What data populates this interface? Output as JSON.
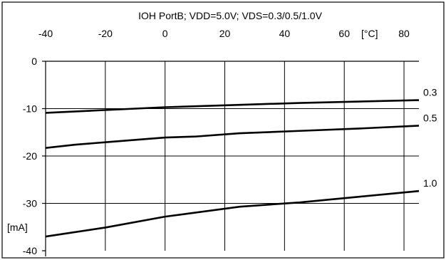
{
  "chart_data": {
    "type": "line",
    "title": "IOH PortB; VDD=5.0V; VDS=0.3/0.5/1.0V",
    "x_unit_label": "[°C]",
    "y_unit_label": "[mA]",
    "xlim": [
      -40,
      85
    ],
    "ylim": [
      -40,
      0
    ],
    "x_ticks": [
      -40,
      -20,
      0,
      20,
      40,
      60,
      80
    ],
    "x_tick_labels": [
      "-40",
      "-20",
      "0",
      "20",
      "40",
      "60",
      "80"
    ],
    "y_ticks": [
      0,
      -10,
      -20,
      -30,
      -40
    ],
    "y_tick_labels": [
      "0",
      "-10",
      "-20",
      "-30",
      "-40"
    ],
    "x_axis_position": "top",
    "grid": true,
    "legend": "line-end labels (right)",
    "series": [
      {
        "name": "0.3",
        "x": [
          -40,
          -20,
          0,
          25,
          45,
          65,
          85
        ],
        "y": [
          -10.9,
          -10.3,
          -9.7,
          -9.2,
          -8.8,
          -8.5,
          -8.2
        ]
      },
      {
        "name": "0.5",
        "x": [
          -40,
          -30,
          -20,
          0,
          10,
          25,
          45,
          65,
          85
        ],
        "y": [
          -18.3,
          -17.6,
          -17.1,
          -16.1,
          -15.9,
          -15.2,
          -14.7,
          -14.2,
          -13.6
        ]
      },
      {
        "name": "1.0",
        "x": [
          -40,
          -20,
          0,
          25,
          45,
          65,
          85
        ],
        "y": [
          -37.0,
          -35.1,
          -32.8,
          -30.7,
          -29.8,
          -28.6,
          -27.4
        ]
      }
    ]
  }
}
